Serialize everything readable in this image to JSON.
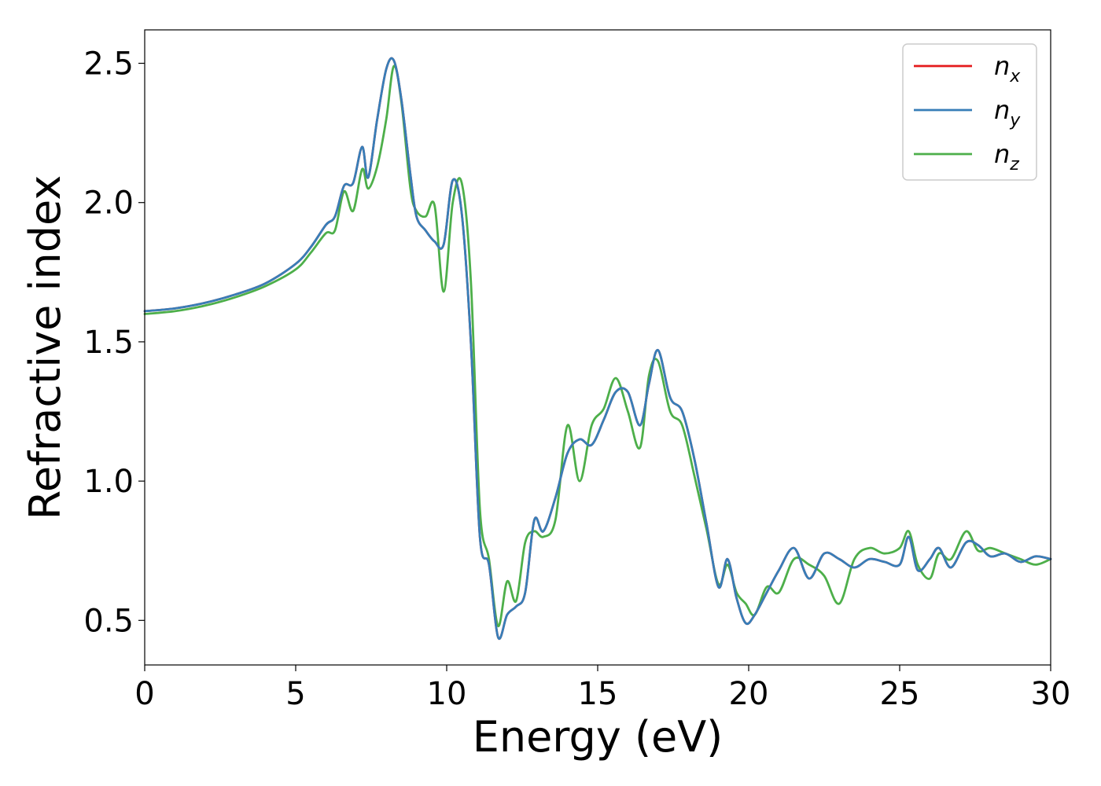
{
  "chart_data": {
    "type": "line",
    "xlabel": "Energy (eV)",
    "ylabel": "Refractive index",
    "xlim": [
      0,
      30
    ],
    "ylim": [
      0.34,
      2.62
    ],
    "xticks": [
      "0",
      "5",
      "10",
      "15",
      "20",
      "25",
      "30"
    ],
    "yticks": [
      "0.5",
      "1.0",
      "1.5",
      "2.0",
      "2.5"
    ],
    "grid": false,
    "legend_position": "top-right",
    "series": [
      {
        "name": "n",
        "sub": "x",
        "color": "#e41a1c",
        "x": [
          0,
          1,
          2,
          3,
          4,
          5,
          5.5,
          6,
          6.3,
          6.6,
          6.9,
          7.2,
          7.4,
          7.7,
          8,
          8.25,
          8.5,
          8.8,
          9,
          9.3,
          9.6,
          9.9,
          10.2,
          10.5,
          10.8,
          11.1,
          11.4,
          11.7,
          12,
          12.3,
          12.6,
          12.9,
          13.2,
          13.6,
          14,
          14.4,
          14.8,
          15.2,
          15.6,
          16,
          16.4,
          16.7,
          17,
          17.4,
          17.8,
          18.2,
          18.6,
          19,
          19.3,
          19.6,
          19.9,
          20.2,
          20.6,
          21,
          21.5,
          22,
          22.5,
          23,
          23.5,
          24,
          24.5,
          25,
          25.3,
          25.6,
          26,
          26.3,
          26.7,
          27.2,
          27.6,
          28,
          28.5,
          29,
          29.5,
          30
        ],
        "y": [
          1.61,
          1.62,
          1.64,
          1.67,
          1.71,
          1.78,
          1.84,
          1.92,
          1.95,
          2.06,
          2.07,
          2.2,
          2.09,
          2.3,
          2.48,
          2.51,
          2.37,
          2.1,
          1.95,
          1.9,
          1.86,
          1.85,
          2.08,
          1.96,
          1.5,
          0.8,
          0.7,
          0.44,
          0.52,
          0.55,
          0.6,
          0.86,
          0.82,
          0.94,
          1.1,
          1.15,
          1.13,
          1.22,
          1.32,
          1.32,
          1.2,
          1.35,
          1.47,
          1.3,
          1.25,
          1.08,
          0.85,
          0.62,
          0.72,
          0.58,
          0.49,
          0.52,
          0.6,
          0.68,
          0.76,
          0.65,
          0.74,
          0.72,
          0.69,
          0.72,
          0.71,
          0.7,
          0.8,
          0.68,
          0.72,
          0.76,
          0.69,
          0.78,
          0.77,
          0.73,
          0.74,
          0.71,
          0.73,
          0.72
        ]
      },
      {
        "name": "n",
        "sub": "y",
        "color": "#377eb8",
        "x": [
          0,
          1,
          2,
          3,
          4,
          5,
          5.5,
          6,
          6.3,
          6.6,
          6.9,
          7.2,
          7.4,
          7.7,
          8,
          8.25,
          8.5,
          8.8,
          9,
          9.3,
          9.6,
          9.9,
          10.2,
          10.5,
          10.8,
          11.1,
          11.4,
          11.7,
          12,
          12.3,
          12.6,
          12.9,
          13.2,
          13.6,
          14,
          14.4,
          14.8,
          15.2,
          15.6,
          16,
          16.4,
          16.7,
          17,
          17.4,
          17.8,
          18.2,
          18.6,
          19,
          19.3,
          19.6,
          19.9,
          20.2,
          20.6,
          21,
          21.5,
          22,
          22.5,
          23,
          23.5,
          24,
          24.5,
          25,
          25.3,
          25.6,
          26,
          26.3,
          26.7,
          27.2,
          27.6,
          28,
          28.5,
          29,
          29.5,
          30
        ],
        "y": [
          1.61,
          1.62,
          1.64,
          1.67,
          1.71,
          1.78,
          1.84,
          1.92,
          1.95,
          2.06,
          2.07,
          2.2,
          2.09,
          2.3,
          2.48,
          2.51,
          2.37,
          2.1,
          1.95,
          1.9,
          1.86,
          1.85,
          2.08,
          1.96,
          1.5,
          0.8,
          0.7,
          0.44,
          0.52,
          0.55,
          0.6,
          0.86,
          0.82,
          0.94,
          1.1,
          1.15,
          1.13,
          1.22,
          1.32,
          1.32,
          1.2,
          1.35,
          1.47,
          1.3,
          1.25,
          1.08,
          0.85,
          0.62,
          0.72,
          0.58,
          0.49,
          0.52,
          0.6,
          0.68,
          0.76,
          0.65,
          0.74,
          0.72,
          0.69,
          0.72,
          0.71,
          0.7,
          0.8,
          0.68,
          0.72,
          0.76,
          0.69,
          0.78,
          0.77,
          0.73,
          0.74,
          0.71,
          0.73,
          0.72
        ]
      },
      {
        "name": "n",
        "sub": "z",
        "color": "#4daf4a",
        "x": [
          0,
          1,
          2,
          3,
          4,
          5,
          5.5,
          6,
          6.3,
          6.6,
          6.9,
          7.2,
          7.4,
          7.7,
          8,
          8.25,
          8.5,
          8.8,
          9,
          9.3,
          9.6,
          9.9,
          10.2,
          10.5,
          10.8,
          11.1,
          11.4,
          11.7,
          12,
          12.3,
          12.6,
          12.9,
          13.2,
          13.6,
          14,
          14.4,
          14.8,
          15.2,
          15.6,
          16,
          16.4,
          16.7,
          17,
          17.4,
          17.8,
          18.2,
          18.6,
          19,
          19.3,
          19.6,
          19.9,
          20.2,
          20.6,
          21,
          21.5,
          22,
          22.5,
          23,
          23.5,
          24,
          24.5,
          25,
          25.3,
          25.6,
          26,
          26.3,
          26.7,
          27.2,
          27.6,
          28,
          28.5,
          29,
          29.5,
          30
        ],
        "y": [
          1.6,
          1.61,
          1.63,
          1.66,
          1.7,
          1.76,
          1.82,
          1.89,
          1.9,
          2.04,
          1.97,
          2.12,
          2.05,
          2.13,
          2.3,
          2.49,
          2.36,
          2.05,
          1.97,
          1.95,
          1.99,
          1.68,
          2.0,
          2.07,
          1.72,
          0.9,
          0.72,
          0.48,
          0.64,
          0.57,
          0.78,
          0.82,
          0.8,
          0.86,
          1.2,
          1.0,
          1.2,
          1.26,
          1.37,
          1.25,
          1.12,
          1.38,
          1.43,
          1.25,
          1.2,
          1.02,
          0.83,
          0.63,
          0.7,
          0.6,
          0.56,
          0.52,
          0.62,
          0.6,
          0.72,
          0.7,
          0.66,
          0.56,
          0.72,
          0.76,
          0.74,
          0.76,
          0.82,
          0.7,
          0.65,
          0.74,
          0.72,
          0.82,
          0.75,
          0.76,
          0.74,
          0.72,
          0.7,
          0.72
        ]
      }
    ]
  }
}
